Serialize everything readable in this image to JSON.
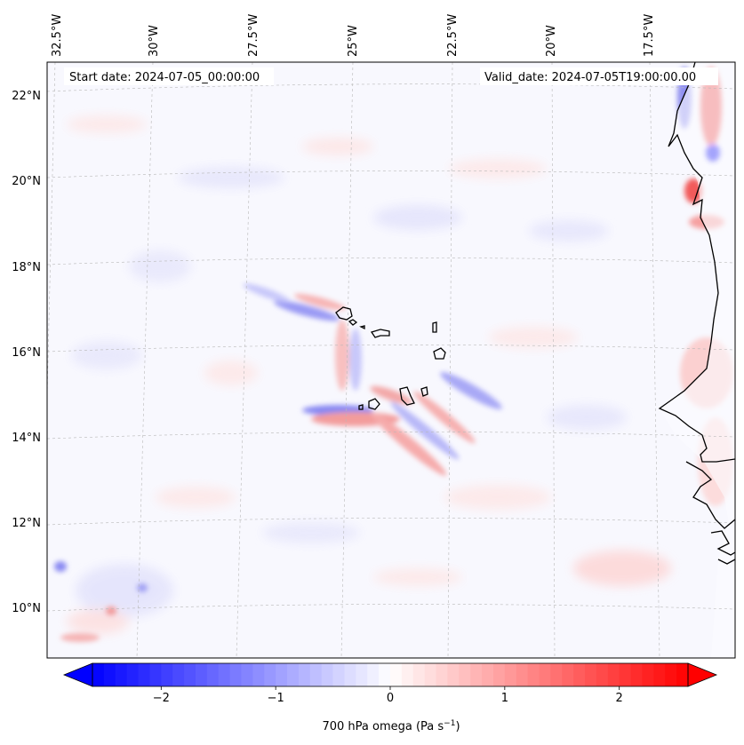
{
  "header": {
    "start_date": "Start date: 2024-07-05_00:00:00",
    "valid_date": "Valid_date: 2024-07-05T19:00:00.00"
  },
  "map": {
    "projection": "lambert-conformal",
    "field": "700 hPa omega",
    "lon_labels": [
      "32.5°W",
      "30°W",
      "27.5°W",
      "25°W",
      "22.5°W",
      "20°W",
      "17.5°W"
    ],
    "lat_labels": [
      "22°N",
      "20°N",
      "18°N",
      "16°N",
      "14°N",
      "12°N",
      "10°N"
    ],
    "gridlines": true,
    "coastline_color": "#000000",
    "features": [
      "cape-verde-islands",
      "west-africa-coastline"
    ]
  },
  "colorbar": {
    "label_prefix": "700 hPa omega (Pa s",
    "label_exponent": "−1",
    "label_suffix": ")",
    "ticks": [
      "−2",
      "−1",
      "0",
      "1",
      "2"
    ],
    "tick_values": [
      -2,
      -1,
      0,
      1,
      2
    ],
    "range": [
      -2.6,
      2.6
    ],
    "extend": "both",
    "colormap": "bwr",
    "low_color": "#0000ff",
    "mid_color": "#ffffff",
    "high_color": "#ff0000"
  }
}
